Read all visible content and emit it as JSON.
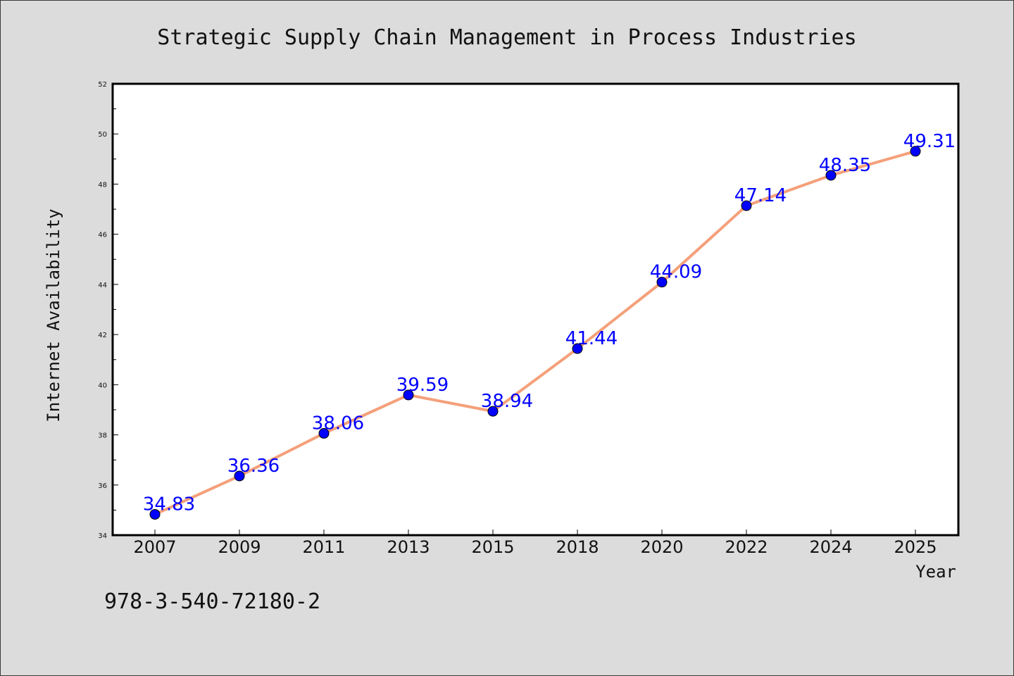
{
  "chart_data": {
    "type": "line",
    "title": "Strategic Supply Chain Management in Process Industries",
    "xlabel": "Year",
    "ylabel": "Internet Availability",
    "categories": [
      "2007",
      "2009",
      "2011",
      "2013",
      "2015",
      "2018",
      "2020",
      "2022",
      "2024",
      "2025"
    ],
    "series": [
      {
        "values": [
          34.83,
          36.36,
          38.06,
          39.59,
          38.94,
          41.44,
          44.09,
          47.14,
          48.35,
          49.31
        ]
      }
    ],
    "data_labels": [
      "34.83",
      "36.36",
      "38.06",
      "39.59",
      "38.94",
      "41.44",
      "44.09",
      "47.14",
      "48.35",
      "49.31"
    ],
    "ylim": [
      34,
      52
    ],
    "yticks": [
      34,
      36,
      38,
      40,
      42,
      44,
      46,
      48,
      50,
      52
    ],
    "grid": false,
    "line_color": "#f4a07a",
    "marker_color": "#0000ff",
    "label_color": "#0000ff"
  },
  "footer": {
    "isbn": "978-3-540-72180-2"
  }
}
